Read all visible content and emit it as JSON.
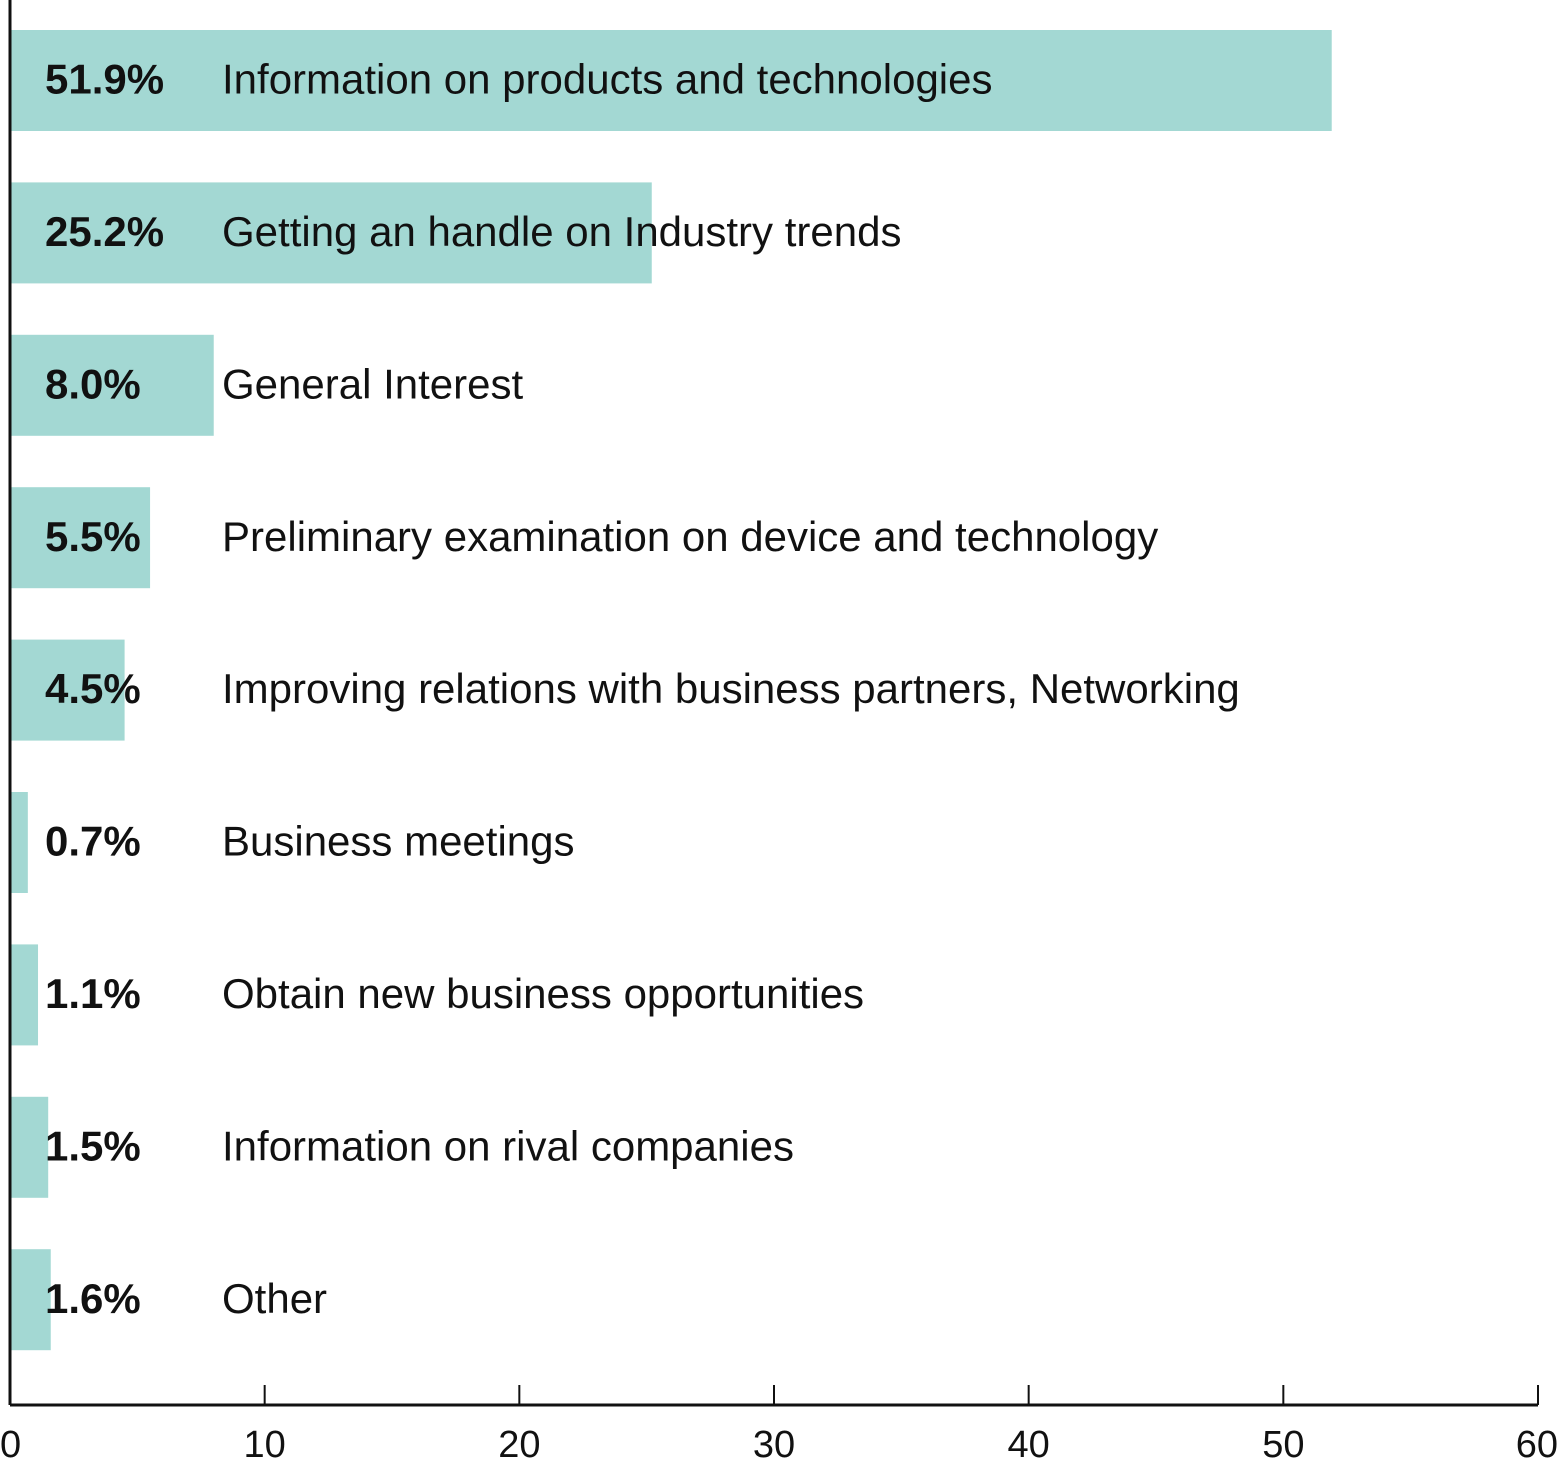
{
  "chart_data": {
    "type": "bar",
    "orientation": "horizontal",
    "color": "#a3d8d3",
    "categories": [
      "Information on products and technologies",
      "Getting an handle on Industry trends",
      "General Interest",
      "Preliminary examination on device and technology",
      "Improving relations with business partners, Networking",
      "Business meetings",
      "Obtain new business opportunities",
      "Information on rival companies",
      "Other"
    ],
    "values": [
      51.9,
      25.2,
      8.0,
      5.5,
      4.5,
      0.7,
      1.1,
      1.5,
      1.6
    ],
    "value_labels": [
      "51.9%",
      "25.2%",
      "8.0%",
      "5.5%",
      "4.5%",
      "0.7%",
      "1.1%",
      "1.5%",
      "1.6%"
    ],
    "xlim": [
      0,
      60
    ],
    "xticks": [
      0,
      10,
      20,
      30,
      40,
      50,
      60
    ]
  }
}
